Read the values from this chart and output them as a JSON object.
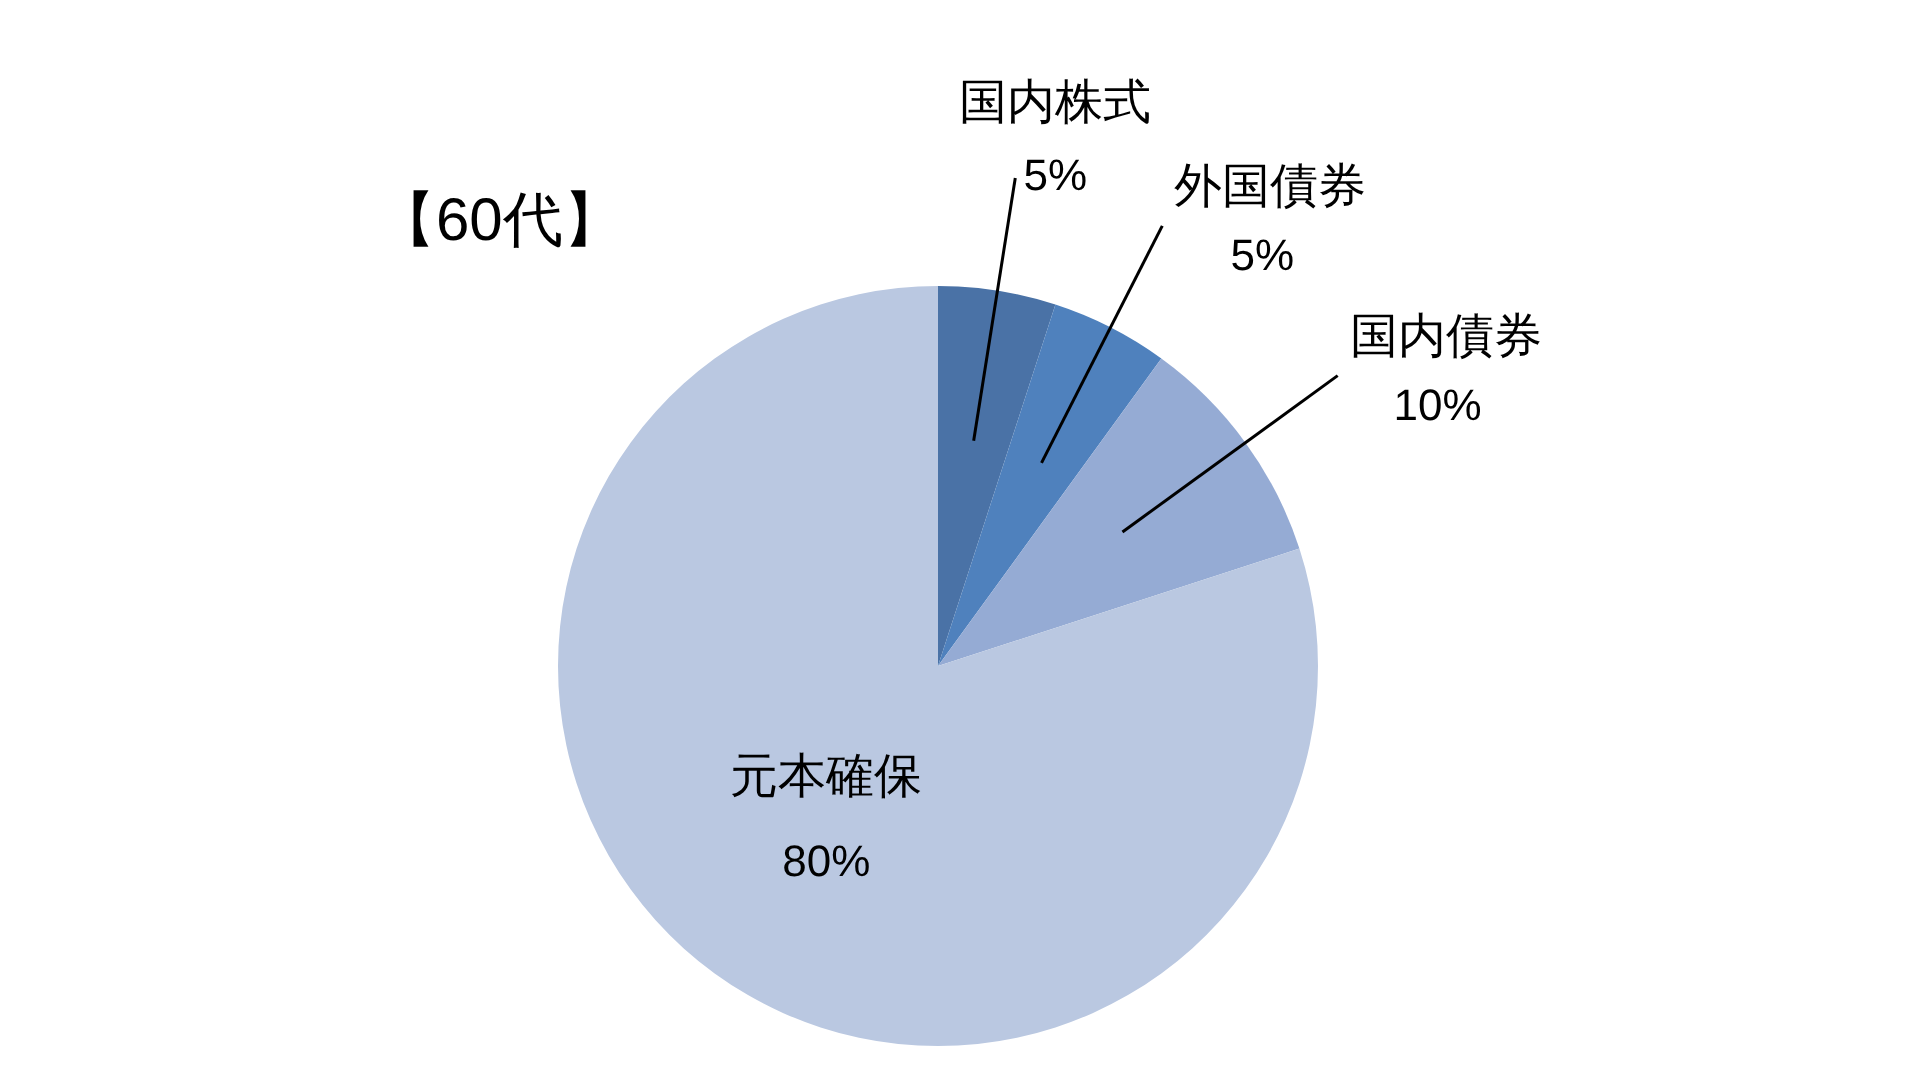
{
  "chart_data": {
    "type": "pie",
    "title": "【60代】",
    "categories": [
      "国内株式",
      "外国債券",
      "国内債券",
      "元本確保"
    ],
    "values": [
      5,
      5,
      10,
      80
    ],
    "colors": [
      "#4a72a6",
      "#4f81bd",
      "#95abd4",
      "#bac8e1"
    ],
    "value_labels": [
      "5%",
      "5%",
      "10%",
      "80%"
    ],
    "legend": false
  }
}
